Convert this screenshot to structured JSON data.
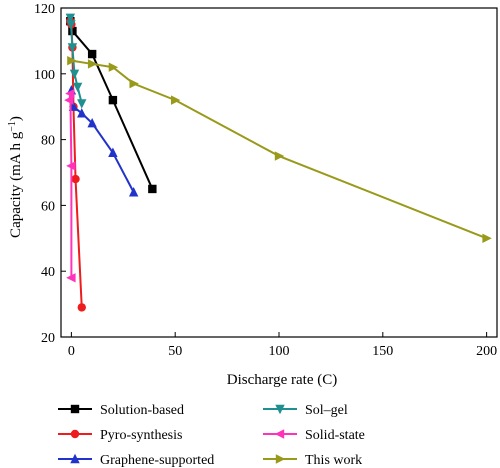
{
  "chart_data": {
    "type": "line",
    "title": "",
    "xlabel": "Discharge rate (C)",
    "ylabel": {
      "base": "Capacity (mA h g",
      "sup": "−1",
      "close": ")"
    },
    "xlim": [
      -5,
      205
    ],
    "ylim": [
      20,
      120
    ],
    "xticks": [
      0,
      50,
      100,
      150,
      200
    ],
    "xtick_labels": [
      "0",
      "50",
      "100",
      "150",
      "200"
    ],
    "yticks": [
      20,
      40,
      60,
      80,
      100,
      120
    ],
    "ytick_labels": [
      "20",
      "40",
      "60",
      "80",
      "100",
      "120"
    ],
    "grid": false,
    "legend_position": "bottom",
    "series": [
      {
        "name": "Solution-based",
        "color": "#000000",
        "marker": "square",
        "x": [
          -0.5,
          0.5,
          10,
          20,
          39
        ],
        "y": [
          116,
          113,
          106,
          92,
          65
        ]
      },
      {
        "name": "Pyro-synthesis",
        "color": "#ee1c1c",
        "marker": "circle",
        "x": [
          -0.5,
          0,
          0.5,
          1,
          2,
          5
        ],
        "y": [
          116,
          115,
          108,
          90,
          68,
          29
        ]
      },
      {
        "name": "Graphene-supported",
        "color": "#2233cc",
        "marker": "triangle-up",
        "x": [
          0,
          1,
          5,
          10,
          20,
          30
        ],
        "y": [
          95,
          90,
          88,
          85,
          76,
          64
        ]
      },
      {
        "name": "Sol–gel",
        "color": "#1f8f8f",
        "marker": "triangle-down",
        "x": [
          -0.5,
          -0.2,
          0.5,
          1.5,
          3,
          5
        ],
        "y": [
          117,
          115,
          108,
          100,
          96,
          91
        ]
      },
      {
        "name": "Solid-state",
        "color": "#ff33bb",
        "marker": "triangle-left",
        "x": [
          -1,
          -0.5,
          0,
          0
        ],
        "y": [
          92,
          94,
          72,
          38
        ]
      },
      {
        "name": "This work",
        "color": "#99991a",
        "marker": "triangle-right",
        "x": [
          0,
          10,
          20,
          30,
          50,
          100,
          200
        ],
        "y": [
          104,
          103,
          102,
          97,
          92,
          75,
          50
        ]
      }
    ]
  }
}
